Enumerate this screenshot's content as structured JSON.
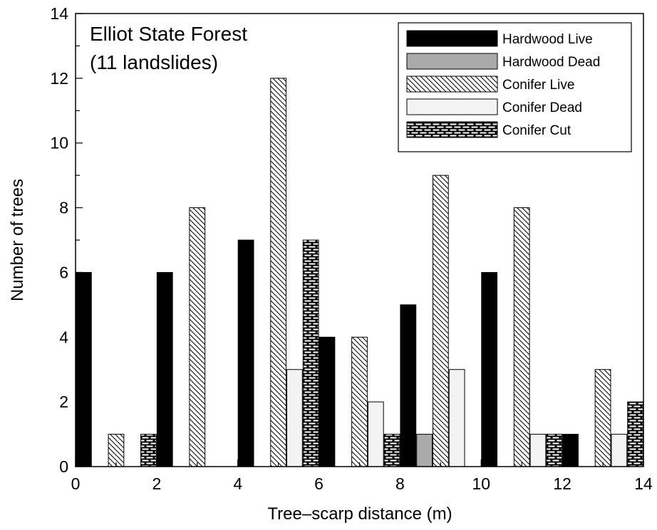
{
  "chart_data": {
    "type": "bar",
    "title_lines": [
      "Elliot State Forest",
      "(11 landslides)"
    ],
    "xlabel": "Tree–scarp distance (m)",
    "ylabel": "Number of trees",
    "xlim": [
      0,
      14
    ],
    "ylim": [
      0,
      14
    ],
    "xticks": [
      0,
      2,
      4,
      6,
      8,
      10,
      12,
      14
    ],
    "yticks": [
      0,
      2,
      4,
      6,
      8,
      10,
      12,
      14
    ],
    "x_minor_tick_step": 1,
    "y_minor_tick_step": 1,
    "bin_width_m": 2,
    "bins": [
      {
        "start": 0,
        "end": 2
      },
      {
        "start": 2,
        "end": 4
      },
      {
        "start": 4,
        "end": 6
      },
      {
        "start": 6,
        "end": 8
      },
      {
        "start": 8,
        "end": 10
      },
      {
        "start": 10,
        "end": 12
      },
      {
        "start": 12,
        "end": 14
      }
    ],
    "series": [
      {
        "name": "Hardwood Live",
        "fill": "#000000",
        "pattern": "solid",
        "values": [
          6,
          6,
          7,
          4,
          5,
          6,
          1
        ]
      },
      {
        "name": "Hardwood Dead",
        "fill": "#aaaaaa",
        "pattern": "solid",
        "values": [
          0,
          0,
          0,
          0,
          1,
          0,
          0
        ]
      },
      {
        "name": "Conifer Live",
        "fill": "#ffffff",
        "pattern": "diagonal-hatch",
        "values": [
          1,
          8,
          12,
          4,
          9,
          8,
          3
        ]
      },
      {
        "name": "Conifer Dead",
        "fill": "#f3f3f3",
        "pattern": "solid",
        "values": [
          0,
          0,
          3,
          2,
          3,
          1,
          1
        ]
      },
      {
        "name": "Conifer Cut",
        "fill": "#000000",
        "pattern": "brick",
        "values": [
          1,
          0,
          7,
          1,
          0,
          1,
          2
        ]
      }
    ],
    "legend_position": "top-right",
    "grid": false
  }
}
